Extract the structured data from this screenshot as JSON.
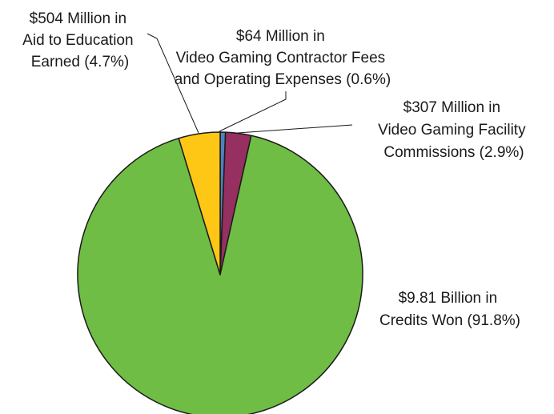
{
  "chart_data": {
    "type": "pie",
    "slices": [
      {
        "label_lines": [
          "$64 Million in",
          "Video Gaming Contractor Fees",
          "and Operating Expenses (0.6%)"
        ],
        "value": 0.6,
        "color": "#4f81bd"
      },
      {
        "label_lines": [
          "$307 Million in",
          "Video Gaming Facility",
          "Commissions (2.9%)"
        ],
        "value": 2.9,
        "color": "#953060"
      },
      {
        "label_lines": [
          "$9.81 Billion in",
          "Credits Won (91.8%)"
        ],
        "value": 91.8,
        "color": "#6fbd44"
      },
      {
        "label_lines": [
          "$504 Million in",
          "Aid to Education",
          "Earned (4.7%)"
        ],
        "value": 4.7,
        "color": "#ffc715"
      }
    ]
  }
}
